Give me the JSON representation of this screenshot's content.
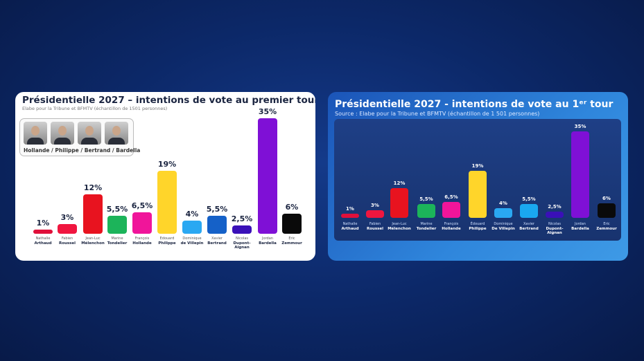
{
  "left": {
    "title": "Présidentielle 2027 – intentions de vote au premier tour",
    "subtitle": "Elabe pour la Tribune et BFMTV (échantillon de 1501 personnes)",
    "photo_caption": "Hollande / Philippe / Bertrand / Bardella"
  },
  "right": {
    "title": "Présidentielle 2027 - intentions de vote au 1ᵉʳ tour",
    "subtitle": "Source : Elabe pour la Tribune et BFMTV (échantillon de 1 501 personnes)"
  },
  "chart_data": [
    {
      "type": "bar",
      "title": "Présidentielle 2027 – intentions de vote au premier tour",
      "categories": [
        [
          "Nathalie",
          "Arthaud"
        ],
        [
          "Fabien",
          "Roussel"
        ],
        [
          "Jean-Luc",
          "Mélenchon"
        ],
        [
          "Marine",
          "Tondelier"
        ],
        [
          "François",
          "Hollande"
        ],
        [
          "Edouard",
          "Philippe"
        ],
        [
          "Dominique",
          "de Villepin"
        ],
        [
          "Xavier",
          "Bertrand"
        ],
        [
          "Nicolas",
          "Dupont-",
          "Aignan"
        ],
        [
          "Jordan",
          "Bardella"
        ],
        [
          "Eric",
          "Zemmour"
        ]
      ],
      "values": [
        1,
        3,
        12,
        5.5,
        6.5,
        19,
        4,
        5.5,
        2.5,
        35,
        6
      ],
      "labels": [
        "1%",
        "3%",
        "12%",
        "5,5%",
        "6,5%",
        "19%",
        "4%",
        "5,5%",
        "2,5%",
        "35%",
        "6%"
      ],
      "colors": [
        "#e0103a",
        "#f0163f",
        "#e8131f",
        "#1cb45a",
        "#f0159a",
        "#ffd52a",
        "#2aa8f2",
        "#1561c8",
        "#3a10b8",
        "#7f10d6",
        "#0a0a0a"
      ],
      "ylim": [
        0,
        35
      ]
    },
    {
      "type": "bar",
      "title": "Présidentielle 2027 - intentions de vote au 1er tour",
      "categories": [
        [
          "Nathalie",
          "Arthaud"
        ],
        [
          "Fabien",
          "Roussel"
        ],
        [
          "Jean-Luc",
          "Mélenchon"
        ],
        [
          "Marine",
          "Tondelier"
        ],
        [
          "François",
          "Hollande"
        ],
        [
          "Édouard",
          "Philippe"
        ],
        [
          "Dominique",
          "De Villepin"
        ],
        [
          "Xavier",
          "Bertrand"
        ],
        [
          "Nicolas",
          "Dupont-",
          "Aignan"
        ],
        [
          "Jordan",
          "Bardella"
        ],
        [
          "Eric",
          "Zemmour"
        ]
      ],
      "values": [
        1,
        3,
        12,
        5.5,
        6.5,
        19,
        4,
        5.5,
        2.5,
        35,
        6
      ],
      "labels": [
        "1%",
        "3%",
        "12%",
        "5,5%",
        "6,5%",
        "19%",
        "4%",
        "5,5%",
        "2,5%",
        "35%",
        "6%"
      ],
      "colors": [
        "#e0103a",
        "#f0163f",
        "#e8131f",
        "#1cb45a",
        "#f0159a",
        "#ffd52a",
        "#2aa8f2",
        "#1aa8f0",
        "#3a10b8",
        "#7f10d6",
        "#0a0a0a"
      ],
      "ylim": [
        0,
        35
      ]
    }
  ]
}
